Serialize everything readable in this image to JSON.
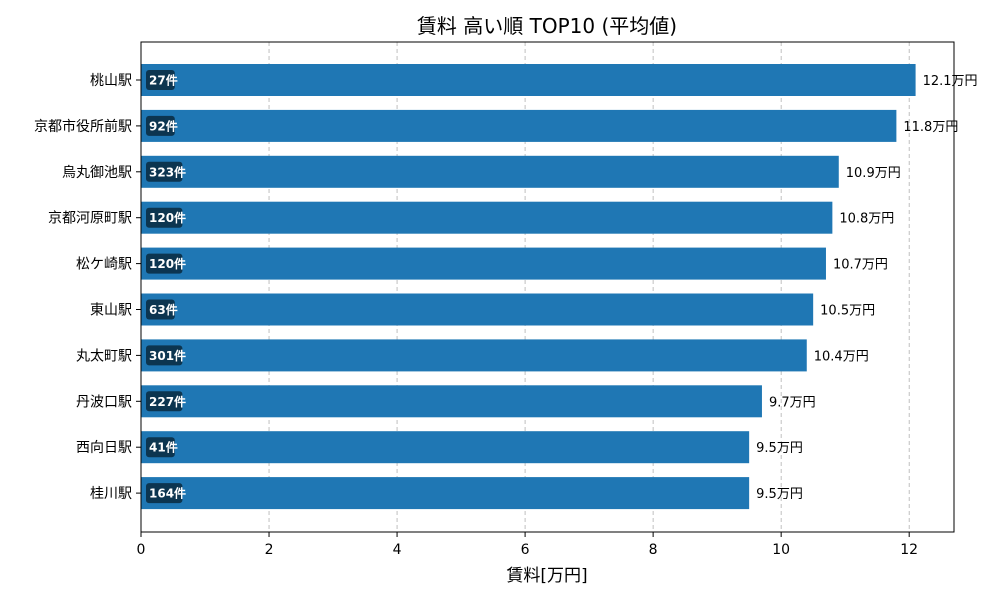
{
  "chart_data": {
    "type": "bar",
    "orientation": "horizontal",
    "title": "賃料 高い順 TOP10 (平均値)",
    "xlabel": "賃料[万円]",
    "ylabel": "",
    "xlim": [
      0,
      12.7
    ],
    "xticks": [
      0,
      2,
      4,
      6,
      8,
      10,
      12
    ],
    "grid": "x-dashed",
    "bar_color": "#1f77b4",
    "count_badge_color": "#0c3550",
    "value_suffix": "万円",
    "count_suffix": "件",
    "categories": [
      "桃山駅",
      "京都市役所前駅",
      "烏丸御池駅",
      "京都河原町駅",
      "松ケ崎駅",
      "東山駅",
      "丸太町駅",
      "丹波口駅",
      "西向日駅",
      "桂川駅"
    ],
    "values": [
      12.1,
      11.8,
      10.9,
      10.8,
      10.7,
      10.5,
      10.4,
      9.7,
      9.5,
      9.5
    ],
    "counts": [
      27,
      92,
      323,
      120,
      120,
      63,
      301,
      227,
      41,
      164
    ]
  }
}
